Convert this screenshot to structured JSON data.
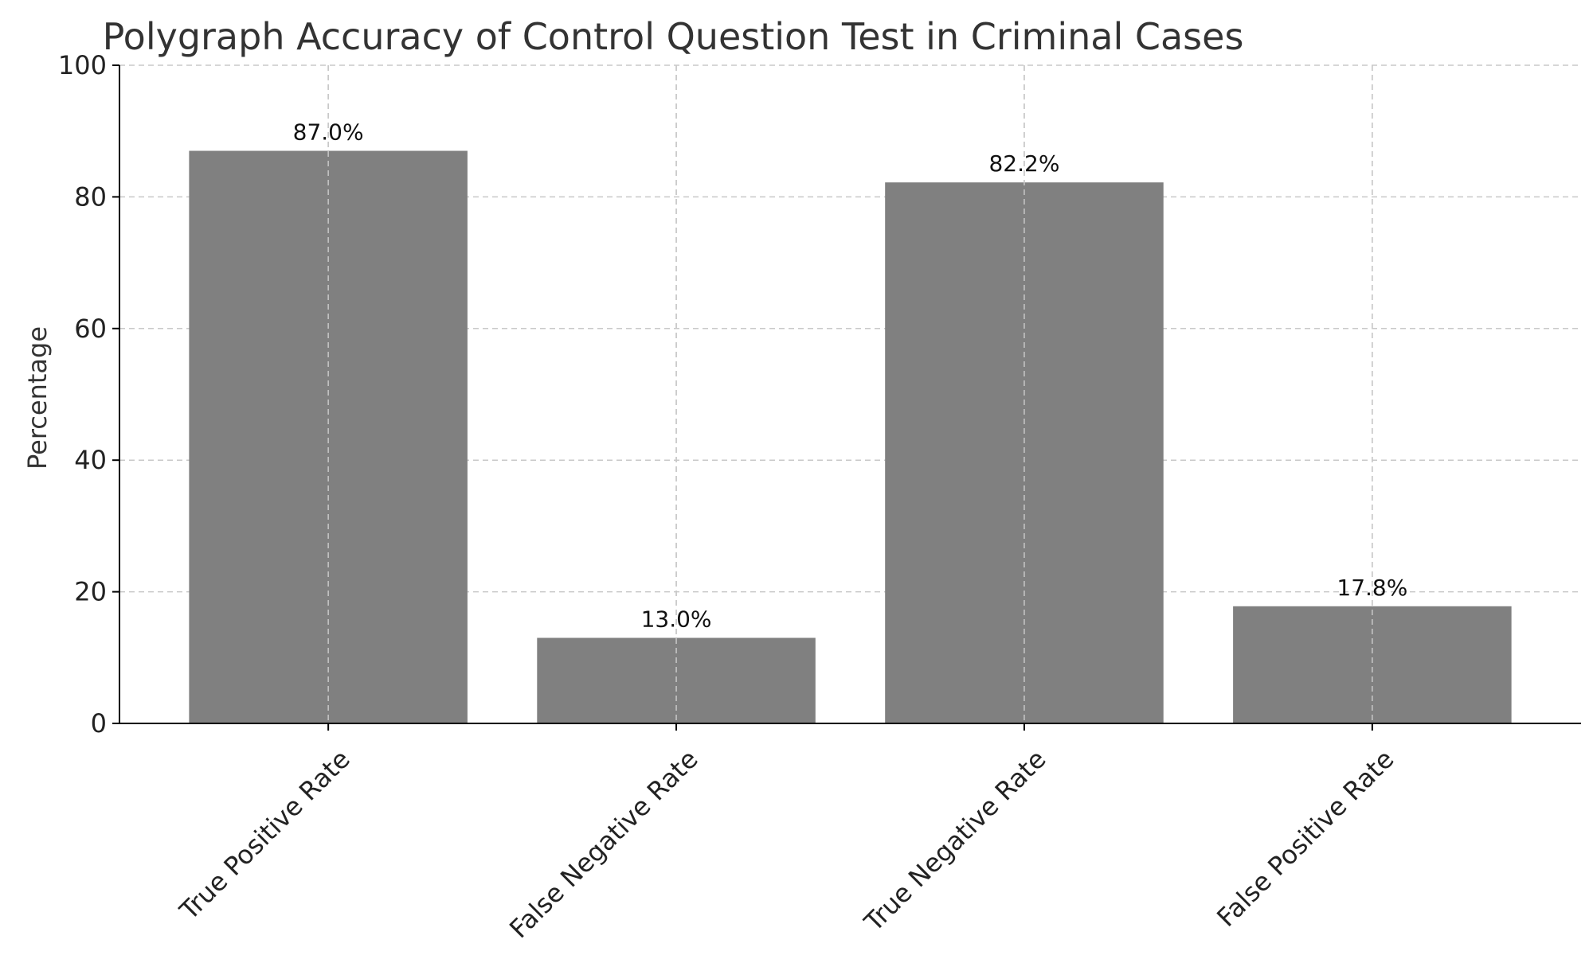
{
  "chart_data": {
    "type": "bar",
    "title": "Polygraph Accuracy of Control Question Test in Criminal Cases",
    "xlabel": "",
    "ylabel": "Percentage",
    "categories": [
      "True Positive Rate",
      "False Negative Rate",
      "True Negative Rate",
      "False Positive Rate"
    ],
    "values": [
      87.0,
      13.0,
      82.2,
      17.8
    ],
    "data_labels": [
      "87.0%",
      "13.0%",
      "82.2%",
      "17.8%"
    ],
    "ylim": [
      0,
      100
    ],
    "yticks": [
      0,
      20,
      40,
      60,
      80,
      100
    ],
    "grid": true,
    "bar_color": "#808080",
    "x_tick_rotation": "45 degrees"
  }
}
